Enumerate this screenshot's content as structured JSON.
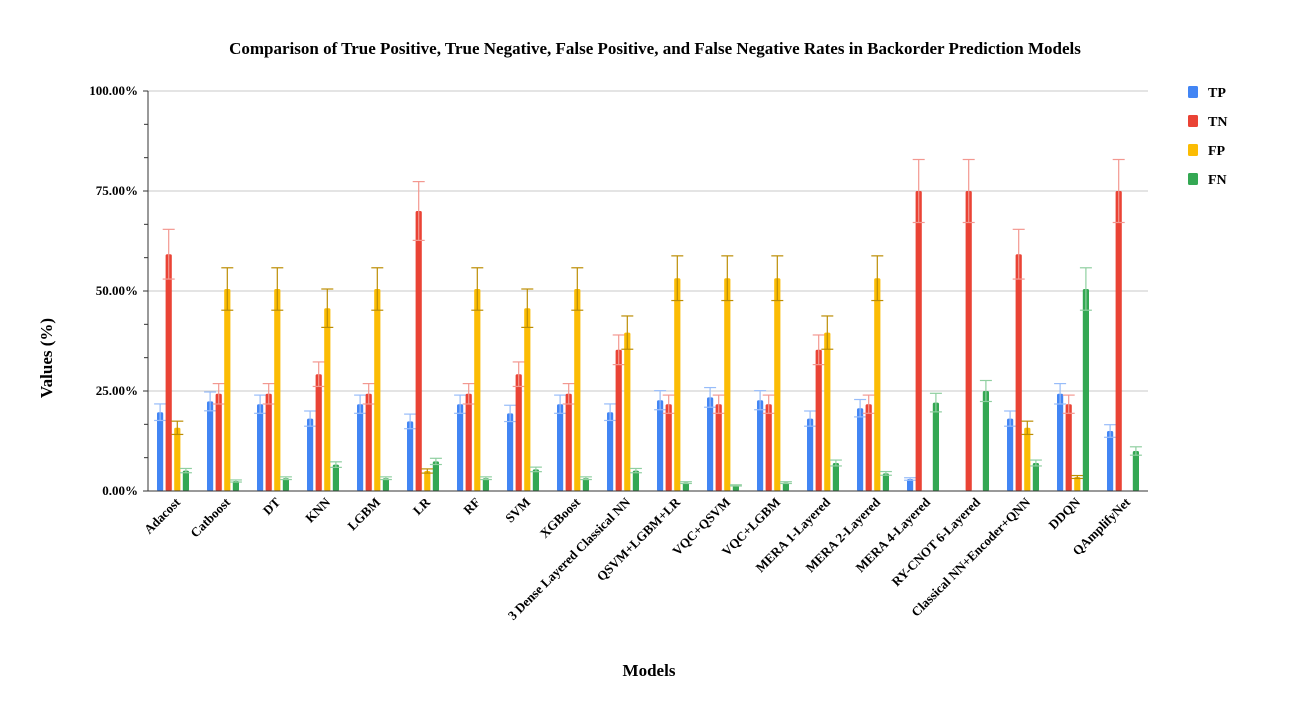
{
  "chart_data": {
    "type": "bar",
    "title": "Comparison of True Positive, True Negative, False Positive, and False Negative Rates in Backorder Prediction Models",
    "xlabel": "Models",
    "ylabel": "Values (%)",
    "ylim": [
      0,
      100
    ],
    "y_ticks": [
      "0.00%",
      "25.00%",
      "50.00%",
      "75.00%",
      "100.00%"
    ],
    "grid": true,
    "legend_position": "top-right",
    "categories": [
      "Adacost",
      "Catboost",
      "DT",
      "KNN",
      "LGBM",
      "LR",
      "RF",
      "SVM",
      "XGBoost",
      "3 Dense Layered Classical NN",
      "QSVM+LGBM+LR",
      "VQC+QSVM",
      "VQC+LGBM",
      "MERA 1-Layered",
      "MERA 2-Layered",
      "MERA 4-Layered",
      "RY-CNOT 6-Layered",
      "Classical NN+Encoder+QNN",
      "DDQN",
      "QAmplifyNet"
    ],
    "series": [
      {
        "name": "TP",
        "color": "#4285f4",
        "values": [
          19.7,
          22.4,
          21.7,
          18.1,
          21.7,
          17.4,
          21.7,
          19.4,
          21.7,
          19.7,
          22.7,
          23.4,
          22.7,
          18.1,
          20.7,
          3.0,
          0.0,
          18.1,
          24.3,
          15.0
        ]
      },
      {
        "name": "TN",
        "color": "#ea4335",
        "values": [
          59.2,
          24.3,
          24.3,
          29.2,
          24.3,
          70.0,
          24.3,
          29.2,
          24.3,
          35.3,
          21.7,
          21.7,
          21.7,
          35.3,
          21.7,
          75.0,
          75.0,
          59.2,
          21.7,
          75.0
        ]
      },
      {
        "name": "FP",
        "color": "#fbbc04",
        "values": [
          15.8,
          50.5,
          50.5,
          45.7,
          50.5,
          5.0,
          50.5,
          45.7,
          50.5,
          39.6,
          53.2,
          53.2,
          53.2,
          39.6,
          53.2,
          0.0,
          0.0,
          15.8,
          3.5,
          0.0
        ]
      },
      {
        "name": "FN",
        "color": "#34a853",
        "values": [
          5.1,
          2.5,
          3.2,
          6.6,
          3.2,
          7.4,
          3.2,
          5.4,
          3.2,
          5.1,
          2.1,
          1.4,
          2.1,
          7.0,
          4.4,
          22.1,
          25.0,
          7.0,
          50.5,
          10.0
        ]
      }
    ]
  }
}
